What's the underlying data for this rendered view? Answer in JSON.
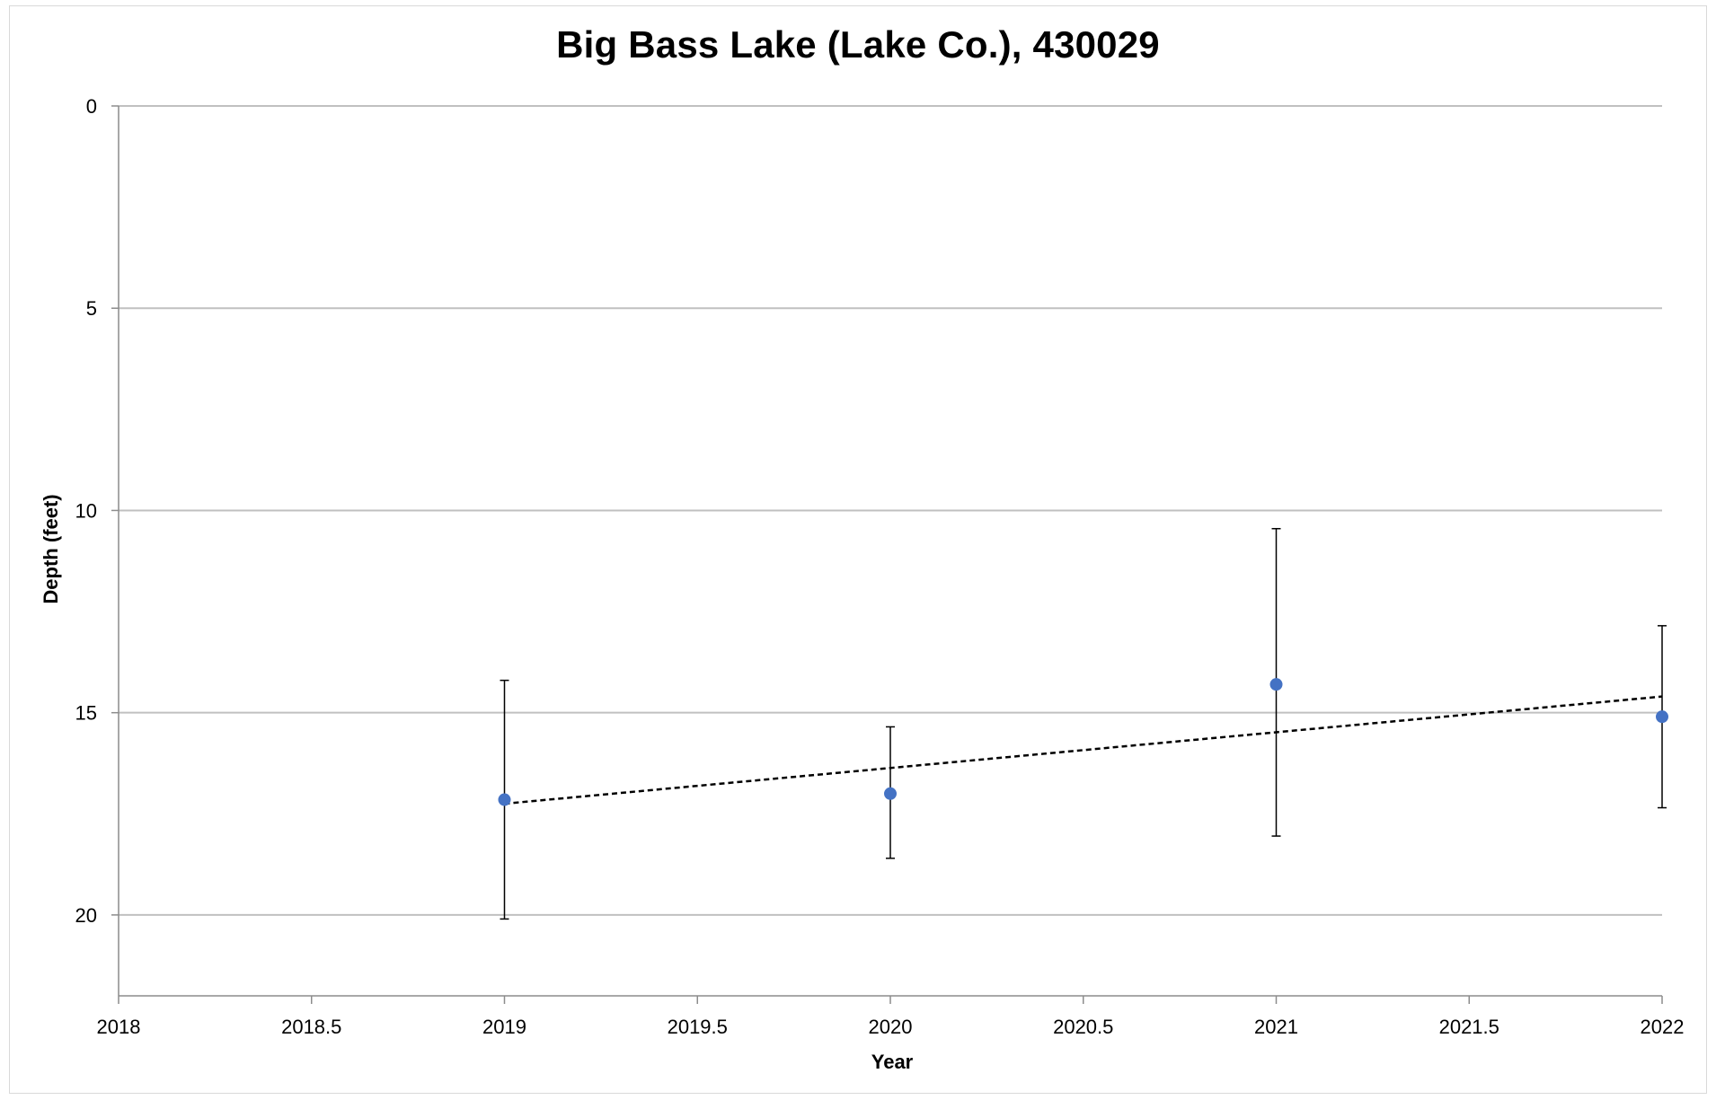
{
  "chart_data": {
    "type": "scatter",
    "title": "Big Bass Lake (Lake Co.), 430029",
    "xlabel": "Year",
    "ylabel": "Depth (feet)",
    "xlim": [
      2018,
      2022
    ],
    "ylim": [
      0,
      22
    ],
    "y_inverted": true,
    "x_ticks": [
      2018,
      2018.5,
      2019,
      2019.5,
      2020,
      2020.5,
      2021,
      2021.5,
      2022
    ],
    "x_tick_labels": [
      "2018",
      "2018.5",
      "2019",
      "2019.5",
      "2020",
      "2020.5",
      "2021",
      "2021.5",
      "2022"
    ],
    "y_ticks": [
      0,
      5,
      10,
      15,
      20
    ],
    "y_tick_labels": [
      "0",
      "5",
      "10",
      "15",
      "20"
    ],
    "grid": {
      "horizontal": true,
      "vertical": false
    },
    "legend": "none",
    "series": [
      {
        "x": [
          2019,
          2020,
          2021,
          2022
        ],
        "y": [
          17.15,
          17.0,
          14.3,
          15.1
        ],
        "error_low": [
          20.1,
          18.6,
          18.05,
          17.35
        ],
        "error_high": [
          14.2,
          15.35,
          10.45,
          12.85
        ],
        "color": "#4472c4"
      }
    ],
    "trendline": {
      "type": "linear",
      "x": [
        2019,
        2022
      ],
      "y": [
        17.25,
        14.6
      ],
      "style": "dashed",
      "color": "#000000"
    }
  }
}
